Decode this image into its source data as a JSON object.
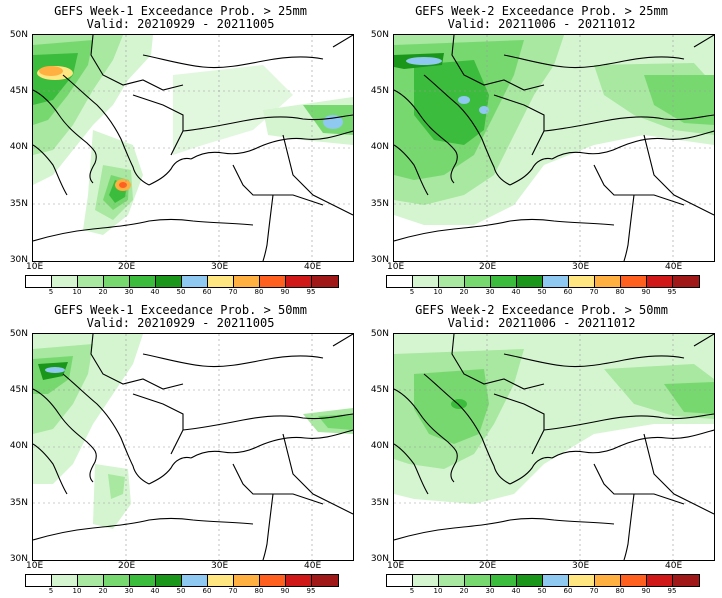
{
  "panels": [
    {
      "title_line1": "GEFS Week-1 Exceedance Prob. > 25mm",
      "title_line2": "Valid: 20210929 - 20211005"
    },
    {
      "title_line1": "GEFS Week-2 Exceedance Prob. > 25mm",
      "title_line2": "Valid: 20211006 - 20211012"
    },
    {
      "title_line1": "GEFS Week-1 Exceedance Prob. > 50mm",
      "title_line2": "Valid: 20210929 - 20211005"
    },
    {
      "title_line1": "GEFS Week-2 Exceedance Prob. > 50mm",
      "title_line2": "Valid: 20211006 - 20211012"
    }
  ],
  "axes": {
    "lat_labels": [
      "50N",
      "45N",
      "40N",
      "35N",
      "30N"
    ],
    "lon_labels": [
      "10E",
      "20E",
      "30E",
      "40E"
    ]
  },
  "colorbar": {
    "levels": [
      "5",
      "10",
      "20",
      "30",
      "40",
      "50",
      "60",
      "70",
      "80",
      "90",
      "95"
    ],
    "colors": [
      "#ffffff",
      "#d4f5d0",
      "#a8e8a0",
      "#78d870",
      "#3cbc3c",
      "#1a961a",
      "#8fc8f0",
      "#ffe680",
      "#ffb040",
      "#ff6020",
      "#d01818",
      "#a01818"
    ]
  },
  "palette": {
    "c10": "#d4f5d0",
    "c20": "#a8e8a0",
    "c30": "#78d870",
    "c40": "#3cbc3c",
    "c50": "#1a961a",
    "c60": "#8fc8f0",
    "c70": "#ffe680",
    "c80": "#ffb040",
    "c90": "#ff6020"
  }
}
